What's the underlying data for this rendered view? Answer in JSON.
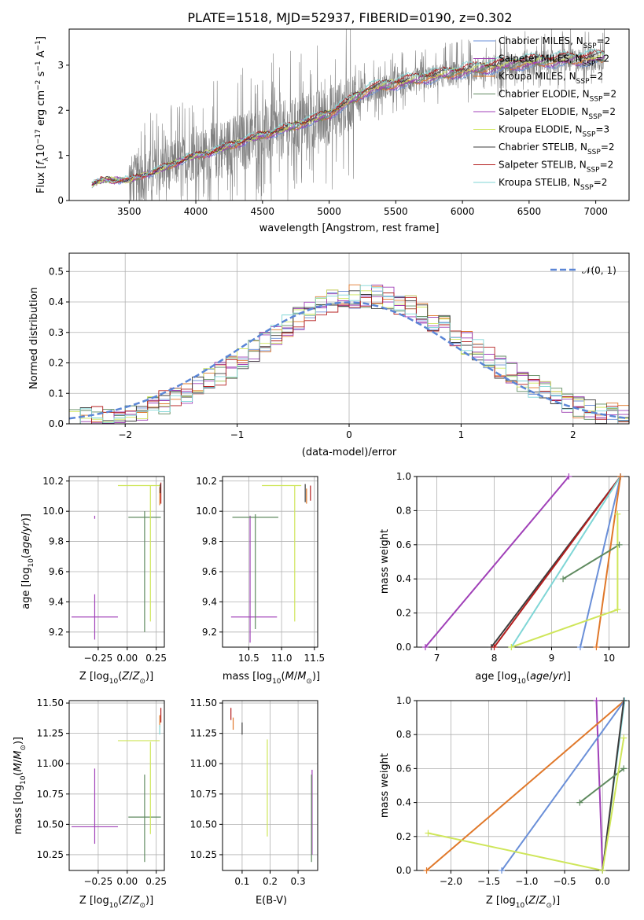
{
  "figure_title": "PLATE=1518, MJD=52937, FIBERID=0190, z=0.302",
  "colors": {
    "chabrier_miles": "#6a8fd8",
    "salpeter_miles": "#9b3bb0",
    "kroupa_miles": "#e0782a",
    "chabrier_elodie": "#5f8a5f",
    "salpeter_elodie": "#a040b8",
    "kroupa_elodie": "#cfe65a",
    "chabrier_stelib": "#3c3c3c",
    "salpeter_stelib": "#b41e1e",
    "kroupa_stelib": "#7fd6d6",
    "spectrum": "#808080",
    "normal": "#5b86d6"
  },
  "chart_data": [
    {
      "id": "spectrum",
      "type": "line",
      "title": "PLATE=1518, MJD=52937, FIBERID=0190, z=0.302",
      "xlabel": "wavelength [Angstrom, rest frame]",
      "ylabel": "Flux [f_λ10^-17 erg cm^-2 s^-1 A^-1]",
      "xlim": [
        3050,
        7250
      ],
      "ylim": [
        0,
        3.8
      ],
      "xticks": [
        3500,
        4000,
        4500,
        5000,
        5500,
        6000,
        6500,
        7000
      ],
      "yticks": [
        0,
        1,
        2,
        3
      ],
      "grid": false,
      "legend_position": "top-right",
      "observed_range": [
        3220,
        7070
      ],
      "continuum_knots": {
        "x": [
          3220,
          3300,
          3500,
          3700,
          3950,
          4100,
          4400,
          4700,
          5000,
          5300,
          5700,
          6100,
          6500,
          6800,
          7070
        ],
        "y": [
          0.35,
          0.45,
          0.45,
          0.65,
          0.95,
          1.05,
          1.35,
          1.6,
          1.9,
          2.45,
          2.7,
          2.9,
          3.05,
          3.1,
          3.15
        ]
      },
      "legend": [
        "Chabrier MILES, N_SSP=2",
        "Salpeter MILES, N_SSP=2",
        "Kroupa MILES, N_SSP=2",
        "Chabrier ELODIE, N_SSP=2",
        "Salpeter ELODIE, N_SSP=2",
        "Kroupa ELODIE, N_SSP=3",
        "Chabrier STELIB, N_SSP=2",
        "Salpeter STELIB, N_SSP=2",
        "Kroupa STELIB, N_SSP=2"
      ]
    },
    {
      "id": "residuals",
      "type": "step",
      "xlabel": "(data-model)/error",
      "ylabel": "Normed distribution",
      "xlim": [
        -2.5,
        2.5
      ],
      "ylim": [
        0,
        0.56
      ],
      "xticks": [
        -2,
        -1,
        0,
        1,
        2
      ],
      "yticks": [
        0.0,
        0.1,
        0.2,
        0.3,
        0.4,
        0.5
      ],
      "grid": true,
      "bin_width": 0.1,
      "legend": [
        "N(0,1)"
      ],
      "legend_position": "top-right"
    },
    {
      "id": "age_vs_Z",
      "type": "errorbar",
      "xlabel": "Z [log10(Z/Z⊙)]",
      "ylabel": "age  [log10(age/yr)]",
      "xlim": [
        -0.5,
        0.32
      ],
      "ylim": [
        9.1,
        10.23
      ],
      "xticks": [
        -0.25,
        0.0,
        0.25
      ],
      "yticks": [
        9.2,
        9.4,
        9.6,
        9.8,
        10.0,
        10.2
      ],
      "grid": true,
      "points": [
        {
          "series": "salpeter_elodie",
          "x": -0.28,
          "y": 9.3,
          "xerr": 0.2,
          "yerr": 0.15
        },
        {
          "series": "salpeter_elodie",
          "x": -0.28,
          "y": 9.96,
          "xerr": 0.0,
          "yerr": 0.01
        },
        {
          "series": "chabrier_elodie",
          "x": 0.15,
          "y": 9.96,
          "xerr": 0.14,
          "yerr": 0.0
        },
        {
          "series": "chabrier_elodie",
          "x": 0.15,
          "y": 9.6,
          "xerr": 0.0,
          "yerr": 0.4
        },
        {
          "series": "kroupa_elodie",
          "x": 0.2,
          "y": 9.72,
          "xerr": 0.0,
          "yerr": 0.45
        },
        {
          "series": "kroupa_elodie",
          "x": 0.1,
          "y": 10.17,
          "xerr": 0.18,
          "yerr": 0.0
        },
        {
          "series": "salpeter_stelib",
          "x": 0.29,
          "y": 10.12,
          "xerr": 0.0,
          "yerr": 0.07
        },
        {
          "series": "kroupa_miles",
          "x": 0.28,
          "y": 10.1,
          "xerr": 0.0,
          "yerr": 0.06
        },
        {
          "series": "chabrier_stelib",
          "x": 0.285,
          "y": 10.15,
          "xerr": 0.0,
          "yerr": 0.03
        }
      ]
    },
    {
      "id": "age_vs_mass",
      "type": "errorbar",
      "xlabel": "mass [log10(M/M⊙)]",
      "ylabel": "",
      "xlim": [
        10.1,
        11.55
      ],
      "ylim": [
        9.1,
        10.23
      ],
      "xticks": [
        10.5,
        11.0,
        11.5
      ],
      "yticks": [
        9.2,
        9.4,
        9.6,
        9.8,
        10.0,
        10.2
      ],
      "grid": true,
      "points": [
        {
          "series": "salpeter_elodie",
          "x": 10.58,
          "y": 9.3,
          "xerr": 0.35,
          "yerr": 0.0
        },
        {
          "series": "salpeter_elodie",
          "x": 10.52,
          "y": 9.55,
          "xerr": 0.0,
          "yerr": 0.42
        },
        {
          "series": "chabrier_elodie",
          "x": 10.6,
          "y": 9.96,
          "xerr": 0.35,
          "yerr": 0.0
        },
        {
          "series": "chabrier_elodie",
          "x": 10.6,
          "y": 9.6,
          "xerr": 0.0,
          "yerr": 0.38
        },
        {
          "series": "kroupa_elodie",
          "x": 11.2,
          "y": 9.72,
          "xerr": 0.0,
          "yerr": 0.45
        },
        {
          "series": "kroupa_elodie",
          "x": 11.0,
          "y": 10.17,
          "xerr": 0.3,
          "yerr": 0.0
        },
        {
          "series": "salpeter_stelib",
          "x": 11.44,
          "y": 10.12,
          "xerr": 0.0,
          "yerr": 0.05
        },
        {
          "series": "kroupa_miles",
          "x": 11.38,
          "y": 10.1,
          "xerr": 0.0,
          "yerr": 0.05
        },
        {
          "series": "chabrier_stelib",
          "x": 11.36,
          "y": 10.12,
          "xerr": 0.0,
          "yerr": 0.06
        }
      ]
    },
    {
      "id": "massweight_vs_age",
      "type": "line",
      "xlabel": "age  [log10(age/yr)]",
      "ylabel": "mass weight",
      "xlim": [
        6.65,
        10.35
      ],
      "ylim": [
        0,
        1.0
      ],
      "xticks": [
        7,
        8,
        9,
        10
      ],
      "yticks": [
        0.0,
        0.2,
        0.4,
        0.6,
        0.8,
        1.0
      ],
      "grid": true,
      "series": [
        {
          "key": "salpeter_elodie",
          "x": [
            6.8,
            9.3
          ],
          "y": [
            0.0,
            1.0
          ]
        },
        {
          "key": "chabrier_stelib",
          "x": [
            7.95,
            10.2
          ],
          "y": [
            0.0,
            1.0
          ]
        },
        {
          "key": "salpeter_stelib",
          "x": [
            8.0,
            10.2
          ],
          "y": [
            0.0,
            1.0
          ]
        },
        {
          "key": "kroupa_stelib",
          "x": [
            8.3,
            10.2
          ],
          "y": [
            0.0,
            1.0
          ]
        },
        {
          "key": "chabrier_miles",
          "x": [
            9.5,
            10.2
          ],
          "y": [
            0.0,
            1.0
          ]
        },
        {
          "key": "kroupa_miles",
          "x": [
            9.78,
            10.2
          ],
          "y": [
            0.0,
            1.0
          ]
        },
        {
          "key": "chabrier_elodie",
          "x": [
            9.2,
            10.18
          ],
          "y": [
            0.4,
            0.6
          ]
        },
        {
          "key": "kroupa_elodie",
          "x": [
            8.3,
            10.15,
            10.15
          ],
          "y": [
            0.0,
            0.22,
            0.78
          ]
        }
      ]
    },
    {
      "id": "mass_vs_Z",
      "type": "errorbar",
      "xlabel": "Z [log10(Z/Z⊙)]",
      "ylabel": "mass [log10(M/M⊙)]",
      "xlim": [
        -0.5,
        0.32
      ],
      "ylim": [
        10.12,
        11.52
      ],
      "xticks": [
        -0.25,
        0.0,
        0.25
      ],
      "yticks": [
        10.25,
        10.5,
        10.75,
        11.0,
        11.25,
        11.5
      ],
      "grid": true,
      "points": [
        {
          "series": "salpeter_elodie",
          "x": -0.28,
          "y": 10.48,
          "xerr": 0.2,
          "yerr": 0.0
        },
        {
          "series": "salpeter_elodie",
          "x": -0.28,
          "y": 10.65,
          "xerr": 0.0,
          "yerr": 0.31
        },
        {
          "series": "chabrier_elodie",
          "x": 0.15,
          "y": 10.56,
          "xerr": 0.14,
          "yerr": 0.0
        },
        {
          "series": "chabrier_elodie",
          "x": 0.15,
          "y": 10.55,
          "xerr": 0.0,
          "yerr": 0.36
        },
        {
          "series": "kroupa_elodie",
          "x": 0.2,
          "y": 10.8,
          "xerr": 0.0,
          "yerr": 0.38
        },
        {
          "series": "kroupa_elodie",
          "x": 0.1,
          "y": 11.19,
          "xerr": 0.18,
          "yerr": 0.0
        },
        {
          "series": "salpeter_stelib",
          "x": 0.29,
          "y": 11.4,
          "xerr": 0.0,
          "yerr": 0.06
        },
        {
          "series": "kroupa_miles",
          "x": 0.28,
          "y": 11.35,
          "xerr": 0.0,
          "yerr": 0.05
        },
        {
          "series": "kroupa_stelib",
          "x": 0.28,
          "y": 11.28,
          "xerr": 0.0,
          "yerr": 0.04
        }
      ]
    },
    {
      "id": "mass_vs_ebv",
      "type": "errorbar",
      "xlabel": "E(B-V)",
      "ylabel": "",
      "xlim": [
        0.03,
        0.37
      ],
      "ylim": [
        10.12,
        11.52
      ],
      "xticks": [
        0.1,
        0.2,
        0.3
      ],
      "yticks": [
        10.25,
        10.5,
        10.75,
        11.0,
        11.25,
        11.5
      ],
      "grid": true,
      "points": [
        {
          "series": "kroupa_elodie",
          "x": 0.19,
          "y": 10.8,
          "xerr": 0.0,
          "yerr": 0.4
        },
        {
          "series": "salpeter_elodie",
          "x": 0.35,
          "y": 10.6,
          "xerr": 0.0,
          "yerr": 0.35
        },
        {
          "series": "chabrier_elodie",
          "x": 0.348,
          "y": 10.55,
          "xerr": 0.0,
          "yerr": 0.36
        },
        {
          "series": "salpeter_stelib",
          "x": 0.06,
          "y": 11.41,
          "xerr": 0.0,
          "yerr": 0.05
        },
        {
          "series": "kroupa_miles",
          "x": 0.068,
          "y": 11.33,
          "xerr": 0.0,
          "yerr": 0.05
        },
        {
          "series": "chabrier_stelib",
          "x": 0.1,
          "y": 11.29,
          "xerr": 0.0,
          "yerr": 0.05
        }
      ]
    },
    {
      "id": "massweight_vs_Z",
      "type": "line",
      "xlabel": "Z [log10(Z/Z⊙)]",
      "ylabel": "mass weight",
      "xlim": [
        -2.45,
        0.35
      ],
      "ylim": [
        0,
        1.0
      ],
      "xticks": [
        -2.0,
        -1.5,
        -1.0,
        -0.5,
        0.0
      ],
      "yticks": [
        0.0,
        0.2,
        0.4,
        0.6,
        0.8,
        1.0
      ],
      "grid": true,
      "series": [
        {
          "key": "salpeter_elodie",
          "x": [
            -0.08,
            0.0
          ],
          "y": [
            1.0,
            0.0
          ]
        },
        {
          "key": "kroupa_miles",
          "x": [
            -2.32,
            0.29
          ],
          "y": [
            0.0,
            1.0
          ]
        },
        {
          "key": "chabrier_miles",
          "x": [
            -1.33,
            0.29
          ],
          "y": [
            0.0,
            1.0
          ]
        },
        {
          "key": "kroupa_stelib",
          "x": [
            0.0,
            0.29
          ],
          "y": [
            0.0,
            1.0
          ]
        },
        {
          "key": "chabrier_stelib",
          "x": [
            0.0,
            0.28
          ],
          "y": [
            0.0,
            1.0
          ]
        },
        {
          "key": "chabrier_elodie",
          "x": [
            -0.3,
            0.28
          ],
          "y": [
            0.4,
            0.6
          ]
        },
        {
          "key": "kroupa_elodie",
          "x": [
            -2.3,
            0.0,
            0.28
          ],
          "y": [
            0.22,
            0.0,
            0.78
          ]
        }
      ]
    }
  ]
}
